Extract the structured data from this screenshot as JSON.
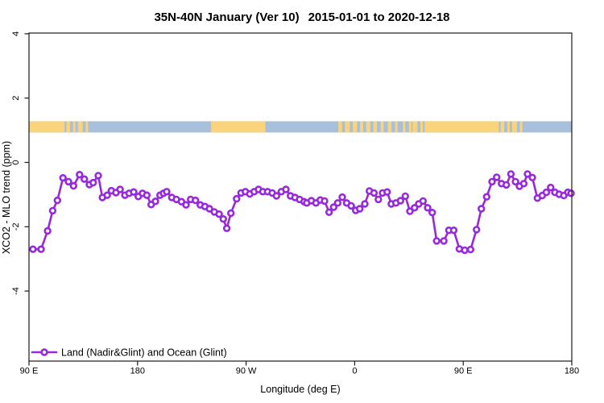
{
  "title": {
    "region_period": "35N-40N January (Ver 10)",
    "date_range": "2015-01-01 to 2020-12-18"
  },
  "chart_data": {
    "type": "line",
    "title": "35N-40N January (Ver 10)  2015-01-01 to 2020-12-18",
    "xlabel": "Longitude (deg E)",
    "ylabel": "XCO2 - MLO trend (ppm)",
    "x_axis": {
      "description": "longitude wrapping eastward from 90E to 180",
      "ticks": [
        {
          "offset_deg": 0,
          "label": "90 E"
        },
        {
          "offset_deg": 90,
          "label": "180"
        },
        {
          "offset_deg": 180,
          "label": "90 W"
        },
        {
          "offset_deg": 270,
          "label": "0"
        },
        {
          "offset_deg": 360,
          "label": "90 E"
        },
        {
          "offset_deg": 450,
          "label": "180"
        }
      ],
      "range_deg": [
        0,
        450
      ]
    },
    "y_axis": {
      "ticks": [
        {
          "value": 4,
          "label": "4"
        },
        {
          "value": 2,
          "label": "2"
        },
        {
          "value": 0,
          "label": "0"
        },
        {
          "value": -2,
          "label": "-2"
        },
        {
          "value": -4,
          "label": "-4"
        }
      ],
      "ylim": [
        -6.1,
        4.03
      ]
    },
    "legend": {
      "label": "Land (Nadir&Glint) and Ocean (Glint)",
      "position": "bottom-left"
    },
    "series": [
      {
        "name": "Land (Nadir&Glint) and Ocean (Glint)",
        "color": "#9728DE",
        "marker": "open-circle",
        "points": [
          [
            3.3,
            -2.7
          ],
          [
            10.0,
            -2.7
          ],
          [
            15.4,
            -2.13
          ],
          [
            19.6,
            -1.5
          ],
          [
            23.6,
            -1.18
          ],
          [
            28.2,
            -0.48
          ],
          [
            32.7,
            -0.6
          ],
          [
            36.9,
            -0.73
          ],
          [
            41.9,
            -0.38
          ],
          [
            45.9,
            -0.52
          ],
          [
            50.1,
            -0.69
          ],
          [
            53.2,
            -0.63
          ],
          [
            57.4,
            -0.41
          ],
          [
            60.8,
            -1.09
          ],
          [
            64.8,
            -1.02
          ],
          [
            68.3,
            -0.88
          ],
          [
            72.1,
            -0.94
          ],
          [
            75.5,
            -0.84
          ],
          [
            79.5,
            -1.02
          ],
          [
            83.0,
            -0.96
          ],
          [
            86.8,
            -0.92
          ],
          [
            90.6,
            -1.06
          ],
          [
            94.1,
            -0.96
          ],
          [
            97.7,
            -1.02
          ],
          [
            101.3,
            -1.31
          ],
          [
            104.8,
            -1.21
          ],
          [
            108.6,
            -1.02
          ],
          [
            111.5,
            -0.96
          ],
          [
            114.2,
            -0.91
          ],
          [
            118.4,
            -1.09
          ],
          [
            122.2,
            -1.15
          ],
          [
            126.4,
            -1.22
          ],
          [
            130.2,
            -1.32
          ],
          [
            134.0,
            -1.15
          ],
          [
            138.0,
            -1.18
          ],
          [
            142.0,
            -1.32
          ],
          [
            145.8,
            -1.37
          ],
          [
            149.6,
            -1.44
          ],
          [
            153.6,
            -1.54
          ],
          [
            157.6,
            -1.61
          ],
          [
            161.1,
            -1.76
          ],
          [
            164.0,
            -2.05
          ],
          [
            167.4,
            -1.58
          ],
          [
            172.1,
            -1.13
          ],
          [
            175.8,
            -0.95
          ],
          [
            179.4,
            -0.91
          ],
          [
            183.1,
            -0.98
          ],
          [
            186.7,
            -0.91
          ],
          [
            190.3,
            -0.84
          ],
          [
            193.8,
            -0.91
          ],
          [
            197.8,
            -0.91
          ],
          [
            201.6,
            -0.95
          ],
          [
            205.2,
            -1.04
          ],
          [
            209.2,
            -0.91
          ],
          [
            213.0,
            -0.84
          ],
          [
            216.8,
            -1.04
          ],
          [
            220.5,
            -1.09
          ],
          [
            224.3,
            -1.15
          ],
          [
            228.1,
            -1.22
          ],
          [
            230.3,
            -1.26
          ],
          [
            234.1,
            -1.19
          ],
          [
            237.9,
            -1.26
          ],
          [
            241.5,
            -1.17
          ],
          [
            245.0,
            -1.2
          ],
          [
            248.8,
            -1.55
          ],
          [
            252.6,
            -1.39
          ],
          [
            255.9,
            -1.26
          ],
          [
            259.7,
            -1.08
          ],
          [
            263.3,
            -1.26
          ],
          [
            267.1,
            -1.35
          ],
          [
            270.9,
            -1.49
          ],
          [
            274.2,
            -1.44
          ],
          [
            278.4,
            -1.29
          ],
          [
            282.2,
            -0.89
          ],
          [
            286.0,
            -0.95
          ],
          [
            289.6,
            -1.15
          ],
          [
            293.1,
            -0.95
          ],
          [
            296.9,
            -0.92
          ],
          [
            300.4,
            -1.29
          ],
          [
            304.2,
            -1.26
          ],
          [
            308.0,
            -1.19
          ],
          [
            312.0,
            -1.05
          ],
          [
            315.8,
            -1.52
          ],
          [
            319.6,
            -1.41
          ],
          [
            323.1,
            -1.29
          ],
          [
            326.7,
            -1.2
          ],
          [
            330.5,
            -1.41
          ],
          [
            334.3,
            -1.56
          ],
          [
            338.0,
            -2.44
          ],
          [
            343.9,
            -2.44
          ],
          [
            348.1,
            -2.11
          ],
          [
            352.1,
            -2.11
          ],
          [
            356.8,
            -2.69
          ],
          [
            361.2,
            -2.73
          ],
          [
            366.1,
            -2.71
          ],
          [
            371.0,
            -2.09
          ],
          [
            375.0,
            -1.44
          ],
          [
            379.4,
            -1.07
          ],
          [
            383.9,
            -0.6
          ],
          [
            387.7,
            -0.46
          ],
          [
            391.7,
            -0.66
          ],
          [
            395.7,
            -0.7
          ],
          [
            399.5,
            -0.36
          ],
          [
            403.3,
            -0.6
          ],
          [
            406.6,
            -0.74
          ],
          [
            410.2,
            -0.66
          ],
          [
            413.3,
            -0.36
          ],
          [
            417.3,
            -0.47
          ],
          [
            421.5,
            -1.11
          ],
          [
            425.5,
            -1.03
          ],
          [
            428.9,
            -0.93
          ],
          [
            432.5,
            -0.78
          ],
          [
            436.0,
            -0.93
          ],
          [
            439.6,
            -0.99
          ],
          [
            443.4,
            -1.03
          ],
          [
            446.7,
            -0.93
          ],
          [
            449.4,
            -0.96
          ]
        ]
      }
    ],
    "land_ocean_strip": {
      "description": "land/ocean map band for 35N-40N drawn across the plot near y=1",
      "value_range": [
        0.93,
        1.28
      ],
      "ocean_color": "#A9C0DC",
      "land_color": "#FAD47C",
      "land_segments_deg": [
        [
          0,
          29.5
        ],
        [
          31,
          34
        ],
        [
          36.5,
          38.5
        ],
        [
          40.5,
          44.5
        ],
        [
          47,
          49
        ],
        [
          151,
          196
        ],
        [
          256.5,
          259.5
        ],
        [
          262,
          266
        ],
        [
          268.5,
          272
        ],
        [
          274.5,
          277
        ],
        [
          279.5,
          283
        ],
        [
          285.5,
          288.5
        ],
        [
          291.5,
          294
        ],
        [
          297.5,
          300.5
        ],
        [
          303.5,
          305.5
        ],
        [
          310,
          312
        ],
        [
          315,
          317
        ],
        [
          318,
          389.5
        ],
        [
          391,
          394
        ],
        [
          396.5,
          398.5
        ],
        [
          400.5,
          404.5
        ],
        [
          407,
          409
        ]
      ],
      "ocean_patches_deg": [
        [
          322,
          324.5
        ],
        [
          326.5,
          328
        ]
      ]
    }
  }
}
